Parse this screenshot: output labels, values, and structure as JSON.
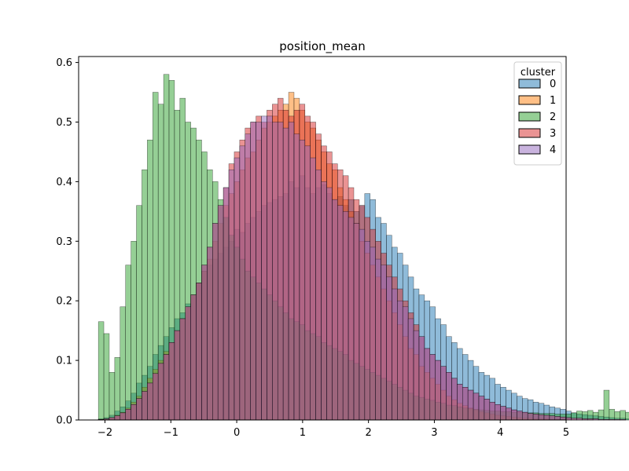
{
  "chart_data": {
    "type": "histogram",
    "title": "position_mean",
    "xlabel": "",
    "ylabel": "",
    "xlim": [
      -2.4,
      5.0
    ],
    "ylim": [
      0,
      0.61
    ],
    "x_ticks": [
      -2,
      -1,
      0,
      1,
      2,
      3,
      4,
      5
    ],
    "x_tick_labels": [
      "−2",
      "−1",
      "0",
      "1",
      "2",
      "3",
      "4",
      "5"
    ],
    "y_ticks": [
      0.0,
      0.1,
      0.2,
      0.3,
      0.4,
      0.5,
      0.6
    ],
    "y_tick_labels": [
      "0.0",
      "0.1",
      "0.2",
      "0.3",
      "0.4",
      "0.5",
      "0.6"
    ],
    "bin_start": -2.1,
    "bin_width": 0.0825,
    "grid": false,
    "legend": {
      "title": "cluster",
      "position": "top-right",
      "entries": [
        "0",
        "1",
        "2",
        "3",
        "4"
      ]
    },
    "series": [
      {
        "name": "0",
        "color": "#1f77b4",
        "values": [
          0.002,
          0.004,
          0.008,
          0.015,
          0.022,
          0.032,
          0.045,
          0.062,
          0.075,
          0.09,
          0.11,
          0.125,
          0.14,
          0.155,
          0.17,
          0.18,
          0.195,
          0.21,
          0.23,
          0.25,
          0.26,
          0.27,
          0.28,
          0.29,
          0.3,
          0.32,
          0.315,
          0.33,
          0.34,
          0.35,
          0.36,
          0.365,
          0.37,
          0.375,
          0.38,
          0.4,
          0.39,
          0.41,
          0.39,
          0.38,
          0.39,
          0.395,
          0.38,
          0.37,
          0.375,
          0.36,
          0.37,
          0.35,
          0.36,
          0.38,
          0.37,
          0.34,
          0.33,
          0.31,
          0.29,
          0.28,
          0.26,
          0.24,
          0.22,
          0.21,
          0.2,
          0.19,
          0.17,
          0.16,
          0.14,
          0.13,
          0.12,
          0.11,
          0.1,
          0.09,
          0.08,
          0.075,
          0.07,
          0.06,
          0.055,
          0.05,
          0.045,
          0.04,
          0.036,
          0.034,
          0.03,
          0.028,
          0.025,
          0.022,
          0.02,
          0.018,
          0.015,
          0.012,
          0.01,
          0.009,
          0.008,
          0.007,
          0.006,
          0.005,
          0.004,
          0.003,
          0.003,
          0.002,
          0.002,
          0.002,
          0.001,
          0.001,
          0.001,
          0.001,
          0.001,
          0.001,
          0.001
        ]
      },
      {
        "name": "1",
        "color": "#ff7f0e",
        "values": [
          0.001,
          0.002,
          0.004,
          0.008,
          0.013,
          0.02,
          0.03,
          0.04,
          0.055,
          0.07,
          0.085,
          0.1,
          0.115,
          0.13,
          0.15,
          0.17,
          0.19,
          0.21,
          0.23,
          0.25,
          0.27,
          0.3,
          0.33,
          0.36,
          0.38,
          0.4,
          0.42,
          0.44,
          0.45,
          0.47,
          0.49,
          0.5,
          0.51,
          0.52,
          0.53,
          0.55,
          0.54,
          0.52,
          0.5,
          0.49,
          0.47,
          0.45,
          0.43,
          0.42,
          0.39,
          0.37,
          0.35,
          0.33,
          0.3,
          0.28,
          0.26,
          0.24,
          0.22,
          0.2,
          0.18,
          0.16,
          0.14,
          0.12,
          0.11,
          0.09,
          0.08,
          0.07,
          0.06,
          0.05,
          0.04,
          0.034,
          0.028,
          0.024,
          0.02,
          0.017,
          0.014,
          0.012,
          0.01,
          0.008,
          0.007,
          0.006,
          0.005,
          0.004,
          0.003,
          0.003,
          0.002,
          0.002,
          0.002,
          0.001,
          0.001,
          0.001,
          0.001,
          0.001,
          0.001,
          0.001,
          0.001,
          0,
          0,
          0,
          0,
          0,
          0,
          0,
          0,
          0,
          0,
          0,
          0,
          0,
          0,
          0,
          0
        ]
      },
      {
        "name": "2",
        "color": "#2ca02c",
        "values": [
          0.165,
          0.145,
          0.08,
          0.105,
          0.19,
          0.26,
          0.3,
          0.36,
          0.42,
          0.47,
          0.55,
          0.53,
          0.58,
          0.57,
          0.52,
          0.54,
          0.5,
          0.49,
          0.47,
          0.45,
          0.42,
          0.4,
          0.37,
          0.34,
          0.31,
          0.29,
          0.27,
          0.25,
          0.24,
          0.23,
          0.22,
          0.21,
          0.2,
          0.19,
          0.18,
          0.17,
          0.165,
          0.16,
          0.15,
          0.145,
          0.14,
          0.13,
          0.125,
          0.12,
          0.115,
          0.11,
          0.1,
          0.095,
          0.09,
          0.085,
          0.08,
          0.075,
          0.07,
          0.065,
          0.06,
          0.055,
          0.05,
          0.045,
          0.04,
          0.038,
          0.035,
          0.033,
          0.03,
          0.028,
          0.025,
          0.024,
          0.022,
          0.02,
          0.019,
          0.018,
          0.017,
          0.016,
          0.015,
          0.015,
          0.014,
          0.014,
          0.013,
          0.013,
          0.012,
          0.012,
          0.012,
          0.011,
          0.011,
          0.011,
          0.01,
          0.01,
          0.01,
          0.012,
          0.015,
          0.014,
          0.016,
          0.013,
          0.017,
          0.05,
          0.018,
          0.014,
          0.016,
          0.013,
          0.015,
          0.014,
          0.012,
          0.013,
          0.011,
          0.012,
          0.01,
          0.01
        ]
      },
      {
        "name": "3",
        "color": "#d62728",
        "values": [
          0.001,
          0.002,
          0.004,
          0.007,
          0.012,
          0.018,
          0.026,
          0.036,
          0.048,
          0.062,
          0.078,
          0.095,
          0.11,
          0.13,
          0.15,
          0.17,
          0.19,
          0.21,
          0.23,
          0.26,
          0.29,
          0.33,
          0.36,
          0.39,
          0.43,
          0.45,
          0.47,
          0.49,
          0.5,
          0.51,
          0.5,
          0.52,
          0.53,
          0.54,
          0.52,
          0.51,
          0.52,
          0.53,
          0.51,
          0.5,
          0.48,
          0.46,
          0.45,
          0.43,
          0.42,
          0.41,
          0.39,
          0.37,
          0.36,
          0.34,
          0.32,
          0.3,
          0.28,
          0.26,
          0.24,
          0.22,
          0.2,
          0.18,
          0.16,
          0.14,
          0.12,
          0.11,
          0.1,
          0.09,
          0.08,
          0.07,
          0.06,
          0.055,
          0.05,
          0.045,
          0.04,
          0.035,
          0.03,
          0.026,
          0.023,
          0.02,
          0.017,
          0.015,
          0.013,
          0.011,
          0.01,
          0.009,
          0.008,
          0.007,
          0.006,
          0.005,
          0.004,
          0.003,
          0.003,
          0.002,
          0.002,
          0.002,
          0.001,
          0.001,
          0.001,
          0.001,
          0.001,
          0,
          0,
          0,
          0,
          0,
          0,
          0,
          0,
          0
        ]
      },
      {
        "name": "4",
        "color": "#9467bd",
        "values": [
          0.001,
          0.002,
          0.004,
          0.007,
          0.012,
          0.018,
          0.026,
          0.036,
          0.048,
          0.062,
          0.078,
          0.095,
          0.11,
          0.13,
          0.15,
          0.17,
          0.19,
          0.21,
          0.23,
          0.26,
          0.29,
          0.33,
          0.36,
          0.39,
          0.42,
          0.44,
          0.46,
          0.48,
          0.5,
          0.5,
          0.51,
          0.51,
          0.5,
          0.5,
          0.49,
          0.5,
          0.48,
          0.47,
          0.46,
          0.44,
          0.42,
          0.4,
          0.39,
          0.37,
          0.36,
          0.35,
          0.34,
          0.33,
          0.32,
          0.3,
          0.29,
          0.27,
          0.26,
          0.24,
          0.22,
          0.2,
          0.19,
          0.17,
          0.15,
          0.14,
          0.12,
          0.11,
          0.1,
          0.09,
          0.08,
          0.07,
          0.06,
          0.055,
          0.05,
          0.045,
          0.04,
          0.035,
          0.03,
          0.026,
          0.023,
          0.02,
          0.017,
          0.015,
          0.013,
          0.011,
          0.01,
          0.009,
          0.008,
          0.007,
          0.006,
          0.005,
          0.004,
          0.003,
          0.003,
          0.002,
          0.002,
          0.002,
          0.001,
          0.001,
          0.001,
          0.001,
          0.001,
          0,
          0,
          0,
          0,
          0,
          0,
          0,
          0,
          0
        ]
      }
    ]
  }
}
